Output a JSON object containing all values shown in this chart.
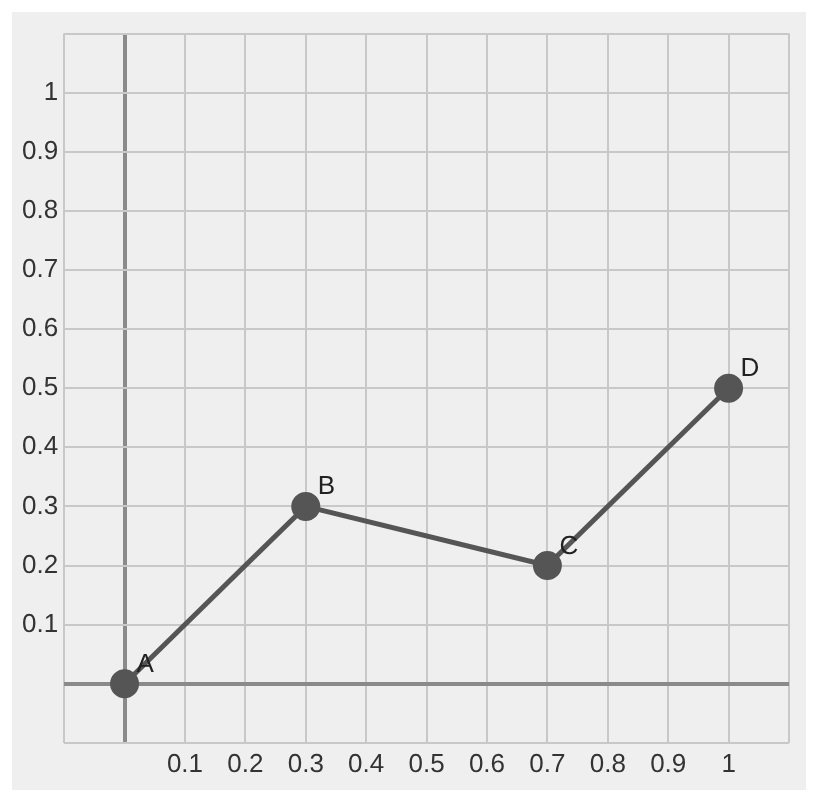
{
  "chart_data": {
    "type": "line",
    "x": [
      0,
      0.3,
      0.7,
      1
    ],
    "values": [
      0,
      0.3,
      0.2,
      0.5
    ],
    "color": "#555555",
    "xlim": [
      -0.1,
      1.1
    ],
    "ylim": [
      -0.1,
      1.1
    ],
    "xticks": [
      {
        "value": -0.1,
        "label": null
      },
      {
        "value": 0,
        "label": null
      },
      0.1,
      0.2,
      0.3,
      0.4,
      0.5,
      0.6,
      0.7,
      0.8,
      0.9,
      1,
      {
        "value": 1.1,
        "label": null
      }
    ],
    "yticks": [
      {
        "value": -0.1,
        "label": null
      },
      {
        "value": 0,
        "label": null
      },
      0.1,
      0.2,
      0.3,
      0.4,
      0.5,
      0.6,
      0.7,
      0.8,
      0.9,
      1,
      {
        "value": 1.1,
        "label": null
      }
    ],
    "annotations": [
      {
        "text": "A",
        "x": 0,
        "y": 0
      },
      {
        "text": "B",
        "x": 0.3,
        "y": 0.3
      },
      {
        "text": "C",
        "x": 0.7,
        "y": 0.2
      },
      {
        "text": "D",
        "x": 1,
        "y": 0.5
      }
    ],
    "grid": true,
    "legend": false,
    "marker": "circle",
    "line_style": "solid"
  }
}
